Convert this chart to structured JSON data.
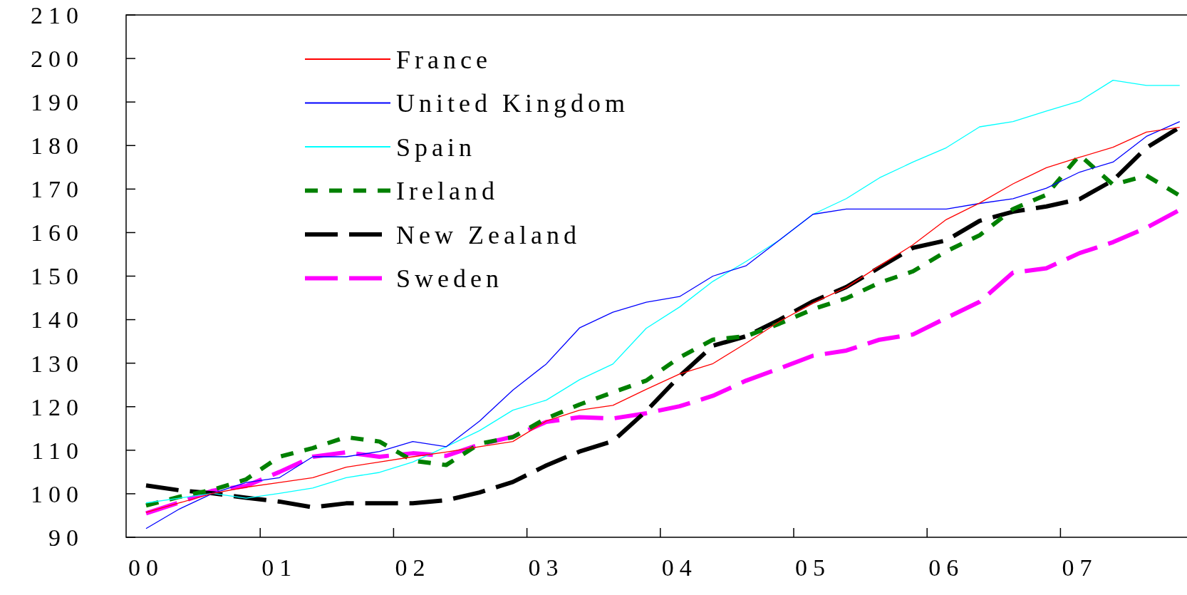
{
  "chart_data": {
    "type": "line",
    "categories": [
      "00",
      null,
      null,
      null,
      "01",
      null,
      null,
      null,
      "02",
      null,
      null,
      null,
      "03",
      null,
      null,
      null,
      "04",
      null,
      null,
      null,
      "05",
      null,
      null,
      null,
      "06",
      null,
      null,
      null,
      "07",
      null,
      null,
      null
    ],
    "ylim": [
      90,
      210
    ],
    "yticks": [
      90,
      100,
      110,
      120,
      130,
      140,
      150,
      160,
      170,
      180,
      190,
      200,
      210
    ],
    "grid": false,
    "legend": "top left",
    "marker": "none",
    "series": [
      {
        "name": "France",
        "color": "#ff0000",
        "line_style": "solid",
        "values": [
          95.7,
          97.9,
          100.1,
          101.5,
          102.6,
          103.7,
          106.1,
          107.3,
          108.5,
          109.6,
          110.8,
          112.0,
          116.7,
          119.2,
          120.3,
          124.0,
          127.5,
          129.9,
          134.6,
          139.6,
          143.8,
          147.4,
          152.4,
          157.2,
          163.0,
          166.8,
          171.2,
          174.9,
          177.3,
          179.6,
          183.1,
          184.2
        ]
      },
      {
        "name": "United Kingdom",
        "color": "#0000ff",
        "line_style": "solid",
        "values": [
          92.0,
          96.5,
          100.1,
          102.6,
          103.7,
          108.5,
          108.5,
          109.7,
          112.0,
          110.8,
          116.7,
          123.8,
          129.8,
          138.1,
          141.7,
          144.0,
          145.3,
          150.0,
          152.4,
          158.3,
          164.2,
          165.4,
          165.4,
          165.4,
          165.4,
          166.7,
          167.8,
          170.2,
          173.9,
          176.2,
          182.1,
          185.5
        ]
      },
      {
        "name": "Spain",
        "color": "#00ffff",
        "line_style": "solid",
        "values": [
          97.9,
          99.0,
          100.1,
          99.0,
          100.1,
          101.3,
          103.7,
          104.9,
          107.3,
          110.8,
          114.5,
          119.2,
          121.5,
          126.2,
          129.8,
          138.0,
          142.9,
          148.8,
          153.4,
          158.3,
          164.2,
          167.8,
          172.6,
          176.2,
          179.5,
          184.3,
          185.5,
          187.9,
          190.2,
          195.0,
          193.8,
          193.8
        ]
      },
      {
        "name": "Ireland",
        "color": "#008000",
        "line_style": "dotted",
        "values": [
          97.3,
          99.3,
          100.9,
          103.3,
          108.5,
          110.5,
          113.0,
          112.0,
          107.6,
          106.6,
          111.5,
          113.0,
          117.3,
          120.5,
          123.3,
          126.0,
          131.3,
          135.4,
          136.2,
          139.1,
          142.4,
          144.9,
          148.5,
          151.1,
          155.7,
          159.4,
          165.4,
          168.7,
          177.8,
          171.0,
          173.1,
          168.5
        ]
      },
      {
        "name": "New Zealand",
        "color": "#000000",
        "line_style": "dashed",
        "values": [
          101.9,
          100.8,
          100.1,
          99.1,
          98.2,
          96.9,
          97.8,
          97.8,
          97.8,
          98.5,
          100.3,
          102.7,
          106.5,
          109.7,
          112.1,
          119.0,
          127.0,
          134.0,
          136.2,
          140.0,
          144.2,
          147.5,
          152.0,
          156.5,
          158.2,
          162.7,
          164.8,
          166.0,
          167.7,
          172.0,
          179.5,
          184.2
        ]
      },
      {
        "name": "Sweden",
        "color": "#ff00ff",
        "line_style": "dashed",
        "values": [
          95.5,
          98.0,
          100.7,
          101.8,
          105.0,
          108.5,
          109.5,
          108.5,
          109.3,
          108.7,
          111.3,
          113.1,
          116.5,
          117.6,
          117.3,
          118.5,
          120.1,
          122.5,
          126.0,
          128.8,
          131.7,
          132.9,
          135.4,
          136.6,
          140.4,
          144.1,
          150.8,
          151.8,
          155.3,
          157.8,
          161.1,
          165.2
        ]
      }
    ]
  }
}
